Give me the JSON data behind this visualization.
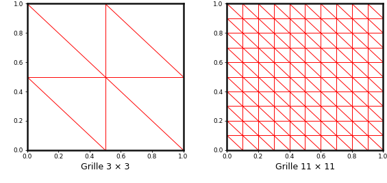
{
  "grid1_n": 2,
  "grid2_n": 10,
  "line_color": "#ff0000",
  "line_width": 0.7,
  "border_color": "#111111",
  "border_width": 1.8,
  "label1": "Grille 3 × 3",
  "label2": "Grille 11 × 11",
  "label_fontsize": 9,
  "tick_fontsize": 6.5,
  "background_color": "#ffffff",
  "xlim": [
    0,
    1
  ],
  "ylim": [
    0,
    1
  ],
  "tick_vals": [
    0,
    0.2,
    0.4,
    0.6,
    0.8,
    1.0
  ],
  "fig_width": 5.65,
  "fig_height": 2.68,
  "dpi": 100
}
